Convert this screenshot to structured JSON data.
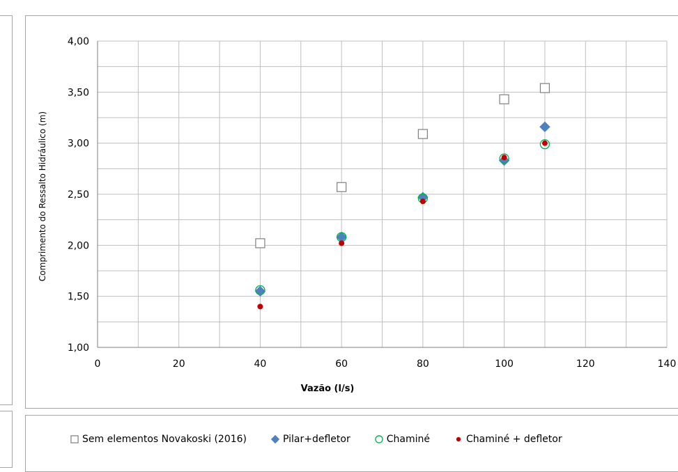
{
  "chart_data": {
    "type": "scatter",
    "title": "",
    "xlabel": "Vazão (l/s)",
    "ylabel": "Comprimento do Ressalto Hidráulico (m)",
    "xlim": [
      0,
      140
    ],
    "ylim": [
      1.0,
      4.0
    ],
    "x_ticks": [
      0,
      20,
      40,
      60,
      80,
      100,
      120,
      140
    ],
    "y_ticks": [
      "1,00",
      "1,50",
      "2,00",
      "2,50",
      "3,00",
      "3,50",
      "4,00"
    ],
    "x_minor_step": 10,
    "y_minor_step": 0.25,
    "grid": true,
    "legend_position": "bottom",
    "series": [
      {
        "name": "Sem elementos Novakoski (2016)",
        "marker": "square-open",
        "color": "#7f7f7f",
        "x": [
          40,
          60,
          80,
          100,
          110
        ],
        "y": [
          2.02,
          2.57,
          3.09,
          3.43,
          3.54
        ]
      },
      {
        "name": "Pilar+defletor",
        "marker": "diamond",
        "color": "#4f81bd",
        "x": [
          40,
          60,
          80,
          100,
          110
        ],
        "y": [
          1.55,
          2.08,
          2.47,
          2.83,
          3.16
        ]
      },
      {
        "name": "Chaminé",
        "marker": "circle-open",
        "color": "#00b050",
        "x": [
          40,
          60,
          80,
          100,
          110
        ],
        "y": [
          1.56,
          2.08,
          2.46,
          2.85,
          2.99
        ]
      },
      {
        "name": "Chaminé + defletor",
        "marker": "circle",
        "color": "#c00000",
        "x": [
          40,
          60,
          80,
          100,
          110
        ],
        "y": [
          1.4,
          2.02,
          2.43,
          2.86,
          3.0
        ]
      }
    ]
  }
}
